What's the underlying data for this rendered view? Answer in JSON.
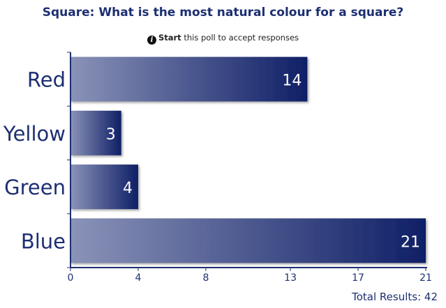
{
  "header": {
    "title": "Square: What is the most natural colour for a square?",
    "notice_bold": "Start",
    "notice_rest": " this poll to accept responses"
  },
  "footer": {
    "total_results": "Total Results: 42"
  },
  "colors": {
    "bar_light": "#8a93b8",
    "bar_dark": "#0f1f66",
    "axis": "#1d2f72",
    "text": "#1d2f72"
  },
  "chart_data": {
    "type": "bar",
    "orientation": "horizontal",
    "title": "Square: What is the most natural colour for a square?",
    "categories": [
      "Red",
      "Yellow",
      "Green",
      "Blue"
    ],
    "values": [
      14,
      3,
      4,
      21
    ],
    "xlim": [
      0,
      21
    ],
    "xticks": [
      0,
      4,
      8,
      13,
      17,
      21
    ],
    "grid": false,
    "legend": "none"
  }
}
